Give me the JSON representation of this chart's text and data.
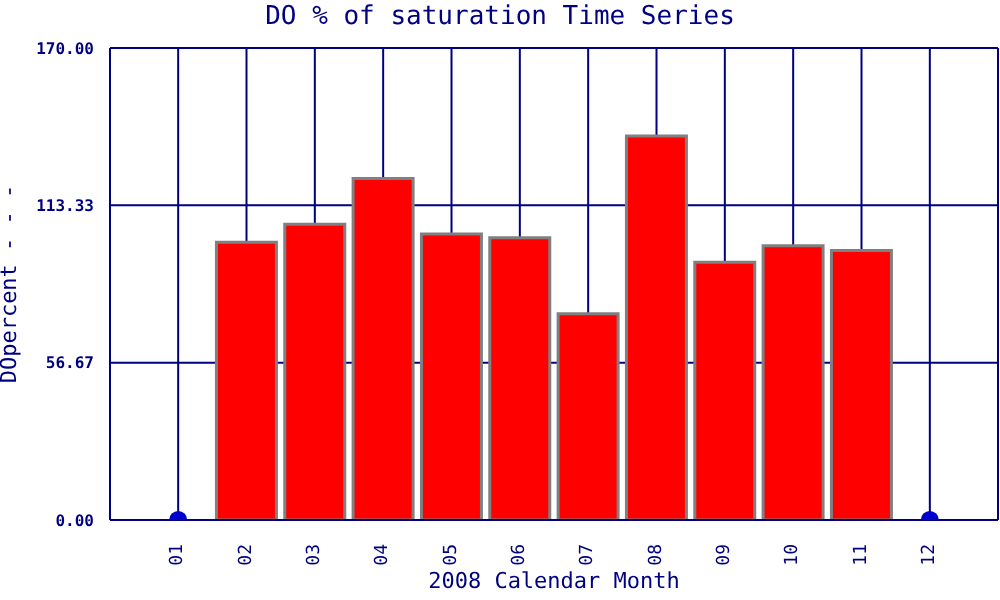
{
  "chart_data": {
    "type": "bar",
    "title": "DO % of saturation Time Series",
    "xlabel": "2008 Calendar Month",
    "ylabel": "DOpercent - - -",
    "categories": [
      "01",
      "02",
      "03",
      "04",
      "05",
      "06",
      "07",
      "08",
      "09",
      "10",
      "11",
      "12"
    ],
    "series": [
      {
        "color": "#ff0000",
        "values": [
          null,
          100,
          106.5,
          123,
          103,
          101.7,
          74.3,
          138.3,
          92.8,
          98.8,
          97.1,
          null
        ]
      },
      {
        "type": "scatter",
        "color": "#0000cc",
        "values": [
          0,
          null,
          null,
          null,
          null,
          null,
          null,
          null,
          null,
          null,
          null,
          0
        ]
      }
    ],
    "ylim": [
      0,
      170
    ],
    "yticks": [
      {
        "value": 0,
        "label": "0.00"
      },
      {
        "value": 56.67,
        "label": "56.67"
      },
      {
        "value": 113.33,
        "label": "113.33"
      },
      {
        "value": 170,
        "label": "170.00"
      }
    ],
    "grid": true,
    "marker": "circle"
  }
}
